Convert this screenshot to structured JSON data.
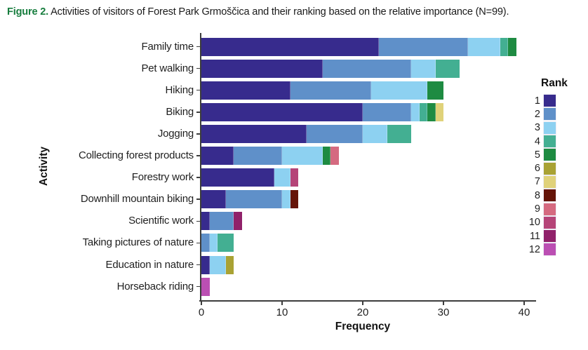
{
  "caption": {
    "prefix": "Figure 2.",
    "text": " Activities of visitors of Forest Park Grmoščica and their ranking based on the relative importance (N=99).",
    "prefix_color": "#177D3E"
  },
  "chart_data": {
    "type": "bar",
    "orientation": "horizontal",
    "stacked": true,
    "title": "",
    "xlabel": "Frequency",
    "ylabel": "Activity",
    "xlim": [
      0,
      40
    ],
    "xticks": [
      "0",
      "10",
      "20",
      "30",
      "40"
    ],
    "grid": false,
    "legend_title": "Rank",
    "legend_position": "right",
    "categories": [
      "Family time",
      "Pet walking",
      "Hiking",
      "Biking",
      "Jogging",
      "Collecting forest products",
      "Forestry work",
      "Downhill mountain biking",
      "Scientific work",
      "Taking pictures of nature",
      "Education in nature",
      "Horseback riding"
    ],
    "series": [
      {
        "name": "1",
        "values": [
          22,
          15,
          11,
          20,
          13,
          4,
          9,
          3,
          1,
          0,
          1,
          0
        ]
      },
      {
        "name": "2",
        "values": [
          11,
          11,
          10,
          6,
          7,
          6,
          0,
          7,
          3,
          1,
          0,
          0
        ]
      },
      {
        "name": "3",
        "values": [
          4,
          3,
          7,
          1,
          3,
          5,
          2,
          1,
          0,
          1,
          2,
          0
        ]
      },
      {
        "name": "4",
        "values": [
          1,
          3,
          0,
          1,
          3,
          0,
          0,
          0,
          0,
          2,
          0,
          0
        ]
      },
      {
        "name": "5",
        "values": [
          1,
          0,
          2,
          1,
          0,
          1,
          0,
          0,
          0,
          0,
          0,
          0
        ]
      },
      {
        "name": "6",
        "values": [
          0,
          0,
          0,
          0,
          0,
          0,
          0,
          0,
          0,
          0,
          1,
          0
        ]
      },
      {
        "name": "7",
        "values": [
          0,
          0,
          0,
          1,
          0,
          0,
          0,
          0,
          0,
          0,
          0,
          0
        ]
      },
      {
        "name": "8",
        "values": [
          0,
          0,
          0,
          0,
          0,
          0,
          0,
          1,
          0,
          0,
          0,
          0
        ]
      },
      {
        "name": "9",
        "values": [
          0,
          0,
          0,
          0,
          0,
          1,
          0,
          0,
          0,
          0,
          0,
          0
        ]
      },
      {
        "name": "10",
        "values": [
          0,
          0,
          0,
          0,
          0,
          0,
          1,
          0,
          0,
          0,
          0,
          0
        ]
      },
      {
        "name": "11",
        "values": [
          0,
          0,
          0,
          0,
          0,
          0,
          0,
          0,
          1,
          0,
          0,
          0
        ]
      },
      {
        "name": "12",
        "values": [
          0,
          0,
          0,
          0,
          0,
          0,
          0,
          0,
          0,
          0,
          0,
          1
        ]
      }
    ],
    "colors": {
      "1": "#372B8D",
      "2": "#5F90C9",
      "3": "#8DD1F1",
      "4": "#43AF92",
      "5": "#1E8B42",
      "6": "#A9A234",
      "7": "#E0D27A",
      "8": "#651408",
      "9": "#D56A80",
      "10": "#B54478",
      "11": "#90216A",
      "12": "#BB4FB3"
    }
  }
}
